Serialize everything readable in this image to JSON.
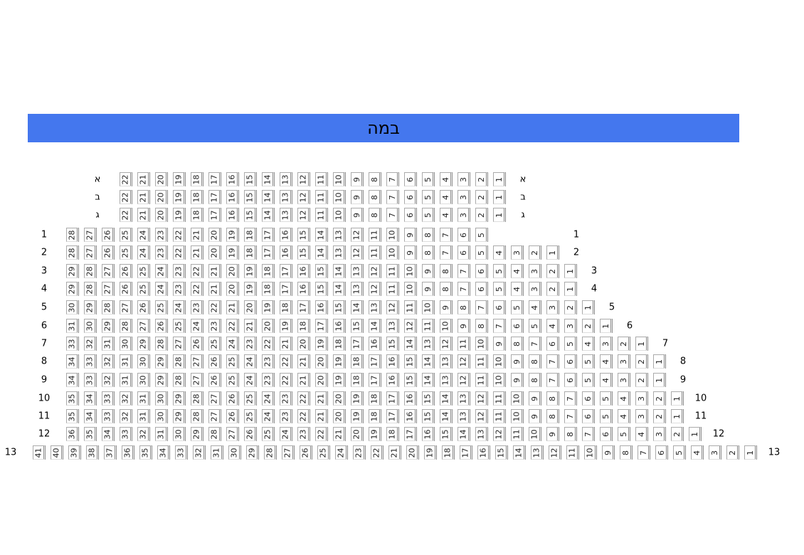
{
  "stage": {
    "label": "במה",
    "color": "#4477ee"
  },
  "rows": [
    {
      "label": "א",
      "from": 22,
      "to": 1
    },
    {
      "label": "ב",
      "from": 22,
      "to": 1
    },
    {
      "label": "ג",
      "from": 22,
      "to": 1
    },
    {
      "label": "1",
      "from": 28,
      "to": 5
    },
    {
      "label": "2",
      "from": 28,
      "to": 1
    },
    {
      "label": "3",
      "from": 29,
      "to": 1
    },
    {
      "label": "4",
      "from": 29,
      "to": 1
    },
    {
      "label": "5",
      "from": 30,
      "to": 1
    },
    {
      "label": "6",
      "from": 31,
      "to": 1
    },
    {
      "label": "7",
      "from": 33,
      "to": 1
    },
    {
      "label": "8",
      "from": 34,
      "to": 1
    },
    {
      "label": "9",
      "from": 34,
      "to": 1
    },
    {
      "label": "10",
      "from": 35,
      "to": 1
    },
    {
      "label": "11",
      "from": 35,
      "to": 1
    },
    {
      "label": "12",
      "from": 36,
      "to": 1
    },
    {
      "label": "13",
      "from": 41,
      "to": 1
    }
  ]
}
